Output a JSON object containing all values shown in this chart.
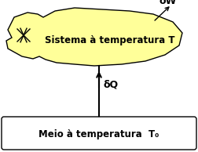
{
  "bg_color": "#ffffff",
  "blob_color": "#ffff99",
  "blob_edge_color": "#000000",
  "system_label": "Sistema à temperatura T",
  "system_label_fontsize": 8.5,
  "system_label_fontweight": "bold",
  "meio_label": "Meio à temperatura  T₀",
  "meio_label_fontsize": 8.5,
  "meio_label_fontweight": "bold",
  "dW_label": "δW",
  "dQ_label": "δQ",
  "arrow_color": "#000000",
  "rect_edge_color": "#000000",
  "rect_bg_color": "#ffffff"
}
